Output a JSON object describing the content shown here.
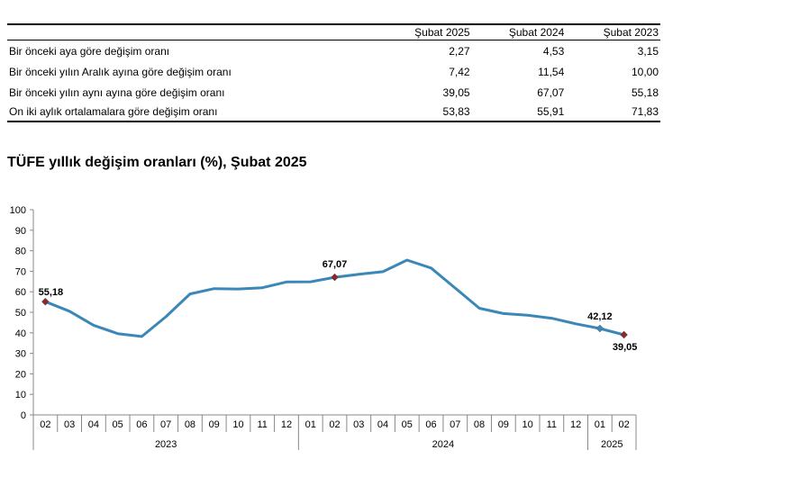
{
  "table": {
    "columns": [
      "Şubat 2025",
      "Şubat 2024",
      "Şubat 2023"
    ],
    "rows": [
      {
        "label": "Bir önceki aya göre değişim oranı",
        "values": [
          "2,27",
          "4,53",
          "3,15"
        ]
      },
      {
        "label": "Bir önceki yılın Aralık ayına göre değişim oranı",
        "values": [
          "7,42",
          "11,54",
          "10,00"
        ]
      },
      {
        "label": "Bir önceki yılın aynı ayına göre değişim oranı",
        "values": [
          "39,05",
          "67,07",
          "55,18"
        ]
      },
      {
        "label": "On iki aylık ortalamalara göre değişim oranı",
        "values": [
          "53,83",
          "55,91",
          "71,83"
        ]
      }
    ]
  },
  "chart_data": {
    "type": "line",
    "title": "TÜFE yıllık değişim oranları (%), Şubat 2025",
    "xlabel": "",
    "ylabel": "",
    "ylim": [
      0,
      100
    ],
    "yticks": [
      0,
      10,
      20,
      30,
      40,
      50,
      60,
      70,
      80,
      90,
      100
    ],
    "categories": [
      "02",
      "03",
      "04",
      "05",
      "06",
      "07",
      "08",
      "09",
      "10",
      "11",
      "12",
      "01",
      "02",
      "03",
      "04",
      "05",
      "06",
      "07",
      "08",
      "09",
      "10",
      "11",
      "12",
      "01",
      "02"
    ],
    "year_groups": [
      {
        "label": "2023",
        "start": 0,
        "end": 10
      },
      {
        "label": "2024",
        "start": 11,
        "end": 22
      },
      {
        "label": "2025",
        "start": 23,
        "end": 24
      }
    ],
    "series": [
      {
        "name": "TÜFE yıllık değişim",
        "color": "#3a87b8",
        "values": [
          55.18,
          50.51,
          43.68,
          39.59,
          38.21,
          47.83,
          58.94,
          61.53,
          61.36,
          61.98,
          64.77,
          64.86,
          67.07,
          68.5,
          69.8,
          75.45,
          71.6,
          61.78,
          51.97,
          49.38,
          48.58,
          47.09,
          44.38,
          42.12,
          39.05
        ]
      }
    ],
    "annotations": [
      {
        "index": 0,
        "text": "55,18",
        "marker": "#8b2a2a"
      },
      {
        "index": 12,
        "text": "67,07",
        "marker": "#8b2a2a"
      },
      {
        "index": 23,
        "text": "42,12",
        "marker": "#3a87b8"
      },
      {
        "index": 24,
        "text": "39,05",
        "marker": "#8b2a2a"
      }
    ]
  }
}
